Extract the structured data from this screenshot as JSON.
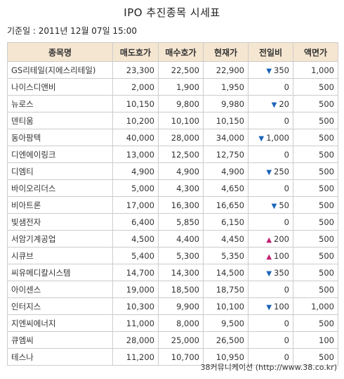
{
  "title": "IPO 추진종목 시세표",
  "base_date": "기준일 : 2011년 12월 07일 15:00",
  "columns": [
    "종목명",
    "매도호가",
    "매수호가",
    "현재가",
    "전일비",
    "액면가"
  ],
  "colors": {
    "header_bg": "#f5e6d1",
    "down": "#1a63b8",
    "up": "#c21e73",
    "border": "#cccccc"
  },
  "rows": [
    {
      "name": "GS리테일(지에스리테일)",
      "ask": "23,300",
      "bid": "22,500",
      "price": "22,900",
      "dir": "down",
      "change": "350",
      "par": "1,000"
    },
    {
      "name": "나이스디앤비",
      "ask": "2,000",
      "bid": "1,900",
      "price": "1,950",
      "dir": "",
      "change": "0",
      "par": "500"
    },
    {
      "name": "뉴로스",
      "ask": "10,150",
      "bid": "9,800",
      "price": "9,980",
      "dir": "down",
      "change": "20",
      "par": "500"
    },
    {
      "name": "덴티움",
      "ask": "10,200",
      "bid": "10,100",
      "price": "10,150",
      "dir": "",
      "change": "0",
      "par": "500"
    },
    {
      "name": "동아팜텍",
      "ask": "40,000",
      "bid": "28,000",
      "price": "34,000",
      "dir": "down",
      "change": "1,000",
      "par": "500"
    },
    {
      "name": "디엔에이링크",
      "ask": "13,000",
      "bid": "12,500",
      "price": "12,750",
      "dir": "",
      "change": "0",
      "par": "500"
    },
    {
      "name": "디엠티",
      "ask": "4,900",
      "bid": "4,900",
      "price": "4,900",
      "dir": "down",
      "change": "250",
      "par": "500"
    },
    {
      "name": "바이오리더스",
      "ask": "5,000",
      "bid": "4,300",
      "price": "4,650",
      "dir": "",
      "change": "0",
      "par": "500"
    },
    {
      "name": "비아트론",
      "ask": "17,000",
      "bid": "16,300",
      "price": "16,650",
      "dir": "down",
      "change": "50",
      "par": "500"
    },
    {
      "name": "빛샘전자",
      "ask": "6,400",
      "bid": "5,850",
      "price": "6,150",
      "dir": "",
      "change": "0",
      "par": "500"
    },
    {
      "name": "서암기계공업",
      "ask": "4,500",
      "bid": "4,400",
      "price": "4,450",
      "dir": "up",
      "change": "200",
      "par": "500"
    },
    {
      "name": "시큐브",
      "ask": "5,400",
      "bid": "5,300",
      "price": "5,350",
      "dir": "up",
      "change": "100",
      "par": "500"
    },
    {
      "name": "씨유메디칼시스템",
      "ask": "14,700",
      "bid": "14,300",
      "price": "14,500",
      "dir": "down",
      "change": "350",
      "par": "500"
    },
    {
      "name": "아이센스",
      "ask": "19,000",
      "bid": "18,500",
      "price": "18,750",
      "dir": "",
      "change": "0",
      "par": "500"
    },
    {
      "name": "인터지스",
      "ask": "10,300",
      "bid": "9,900",
      "price": "10,100",
      "dir": "down",
      "change": "100",
      "par": "1,000"
    },
    {
      "name": "지엔씨에너지",
      "ask": "11,000",
      "bid": "8,000",
      "price": "9,500",
      "dir": "",
      "change": "0",
      "par": "500"
    },
    {
      "name": "큐엠씨",
      "ask": "28,000",
      "bid": "25,000",
      "price": "26,500",
      "dir": "",
      "change": "0",
      "par": "100"
    },
    {
      "name": "테스나",
      "ask": "11,200",
      "bid": "10,700",
      "price": "10,950",
      "dir": "",
      "change": "0",
      "par": "500"
    }
  ],
  "footer": "38커뮤니케이션 (http://www.38.co.kr)"
}
